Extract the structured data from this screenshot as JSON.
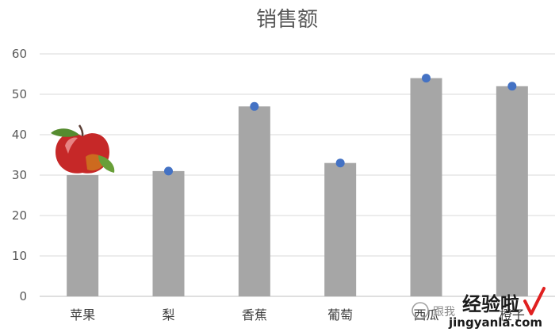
{
  "chart_data": {
    "type": "bar",
    "title": "销售额",
    "categories": [
      "苹果",
      "梨",
      "香蕉",
      "葡萄",
      "西瓜",
      "橙子"
    ],
    "series": [
      {
        "values": [
          30,
          31,
          47,
          33,
          54,
          52
        ]
      }
    ],
    "ylim": [
      0,
      60
    ],
    "yticks": [
      0,
      10,
      20,
      30,
      40,
      50,
      60
    ],
    "grid": true,
    "bar_color": "#a6a6a6",
    "marker_color": "#4472c4",
    "first_bar_marker": "apple-icon"
  },
  "watermark": {
    "small_text": "跟我",
    "big_text": "经验啦",
    "url": "jingyanla.com",
    "check_color": "#e02020"
  }
}
